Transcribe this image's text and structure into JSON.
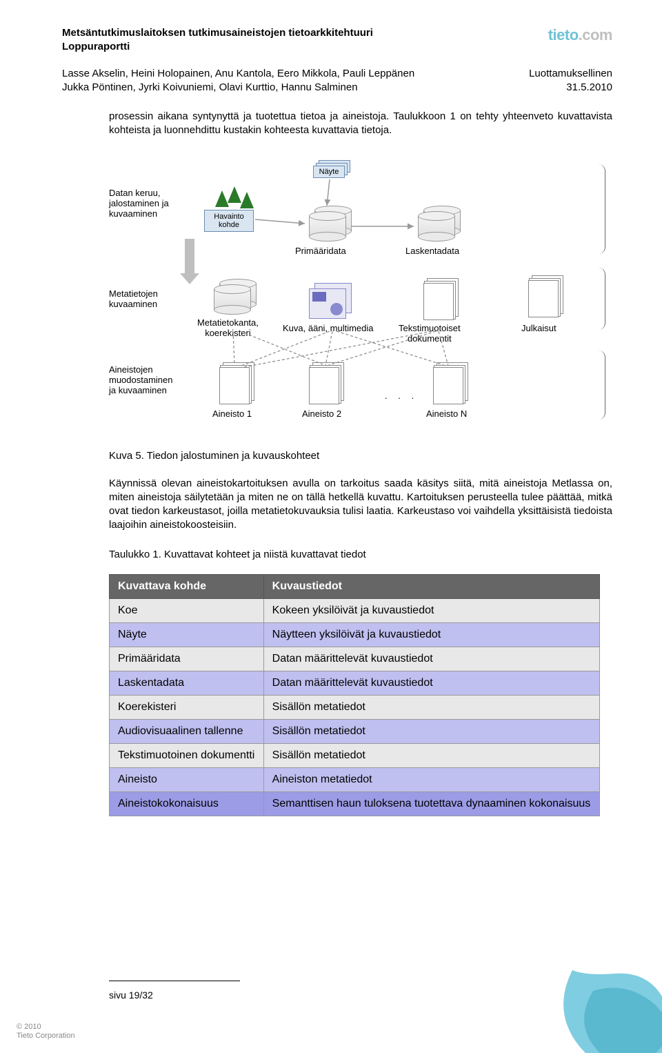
{
  "header": {
    "title": "Metsäntutkimuslaitoksen tutkimusaineistojen tietoarkkitehtuuri",
    "subtitle": "Loppuraportti",
    "logo_brand": "tieto",
    "logo_tld": ".com"
  },
  "authors": {
    "line1": "Lasse Akselin, Heini Holopainen, Anu Kantola, Eero Mikkola, Pauli Leppänen",
    "line2": "Jukka Pöntinen, Jyrki Koivuniemi, Olavi Kurttio, Hannu Salminen",
    "classification": "Luottamuksellinen",
    "date": "31.5.2010"
  },
  "body": {
    "p1": "prosessin aikana syntynyttä ja tuotettua tietoa ja aineistoja. Taulukkoon 1 on tehty yhteenveto kuvattavista kohteista ja luonnehdittu kustakin kohteesta kuvattavia tietoja."
  },
  "diagram": {
    "row_labels": {
      "r1": "Datan keruu,\njalostaminen ja\nkuvaaminen",
      "r2": "Metatietojen\nkuvaaminen",
      "r3": "Aineistojen\nmuodostaminen\nja kuvaaminen"
    },
    "nodes": {
      "nayte": "Näyte",
      "havainto": "Havainto\nkohde",
      "primaaridata": "Primääridata",
      "laskentadata": "Laskentadata",
      "metatietokanta": "Metatietokanta,\nkoerekisteri",
      "multimedia": "Kuva, ääni, multimedia",
      "dokumentit": "Tekstimuotoiset\ndokumentit",
      "julkaisut": "Julkaisut",
      "aineisto1": "Aineisto 1",
      "aineisto2": "Aineisto 2",
      "dots": ". . .",
      "aineistoN": "Aineisto N"
    }
  },
  "figure_caption": "Kuva 5. Tiedon jalostuminen ja kuvauskohteet",
  "body2": {
    "p2": "Käynnissä olevan aineistokartoituksen avulla on tarkoitus saada käsitys siitä, mitä aineistoja Metlassa on, miten aineistoja säilytetään ja miten ne on tällä hetkellä kuvattu. Kartoituksen perusteella tulee päättää, mitkä ovat tiedon karkeustasot, joilla metatietokuvauksia tulisi laatia. Karkeustaso voi vaihdella yksittäisistä tiedoista laajoihin aineistokoosteisiin.",
    "table_caption": "Taulukko 1. Kuvattavat kohteet ja niistä kuvattavat tiedot"
  },
  "table": {
    "headers": [
      "Kuvattava kohde",
      "Kuvaustiedot"
    ],
    "row_colors": [
      "#e8e8e8",
      "#bfbff0",
      "#e8e8e8",
      "#bfbff0",
      "#e8e8e8",
      "#bfbff0",
      "#e8e8e8",
      "#bfbff0",
      "#9b9be6"
    ],
    "rows": [
      [
        "Koe",
        "Kokeen yksilöivät ja kuvaustiedot"
      ],
      [
        "Näyte",
        "Näytteen yksilöivät ja kuvaustiedot"
      ],
      [
        "Primääridata",
        "Datan määrittelevät kuvaustiedot"
      ],
      [
        "Laskentadata",
        "Datan määrittelevät kuvaustiedot"
      ],
      [
        "Koerekisteri",
        "Sisällön metatiedot"
      ],
      [
        "Audiovisuaalinen tallenne",
        "Sisällön metatiedot"
      ],
      [
        "Tekstimuotoinen dokumentti",
        "Sisällön metatiedot"
      ],
      [
        "Aineisto",
        "Aineiston metatiedot"
      ],
      [
        "Aineistokokonaisuus",
        "Semanttisen haun tuloksena tuotettava dynaaminen kokonaisuus"
      ]
    ]
  },
  "footer": {
    "page": "sivu 19/32",
    "copyright1": "© 2010",
    "copyright2": "Tieto Corporation"
  },
  "colors": {
    "logo_primary": "#6ec3d5",
    "logo_gray": "#c0c0c0",
    "table_header_bg": "#666666",
    "table_header_fg": "#ffffff"
  }
}
